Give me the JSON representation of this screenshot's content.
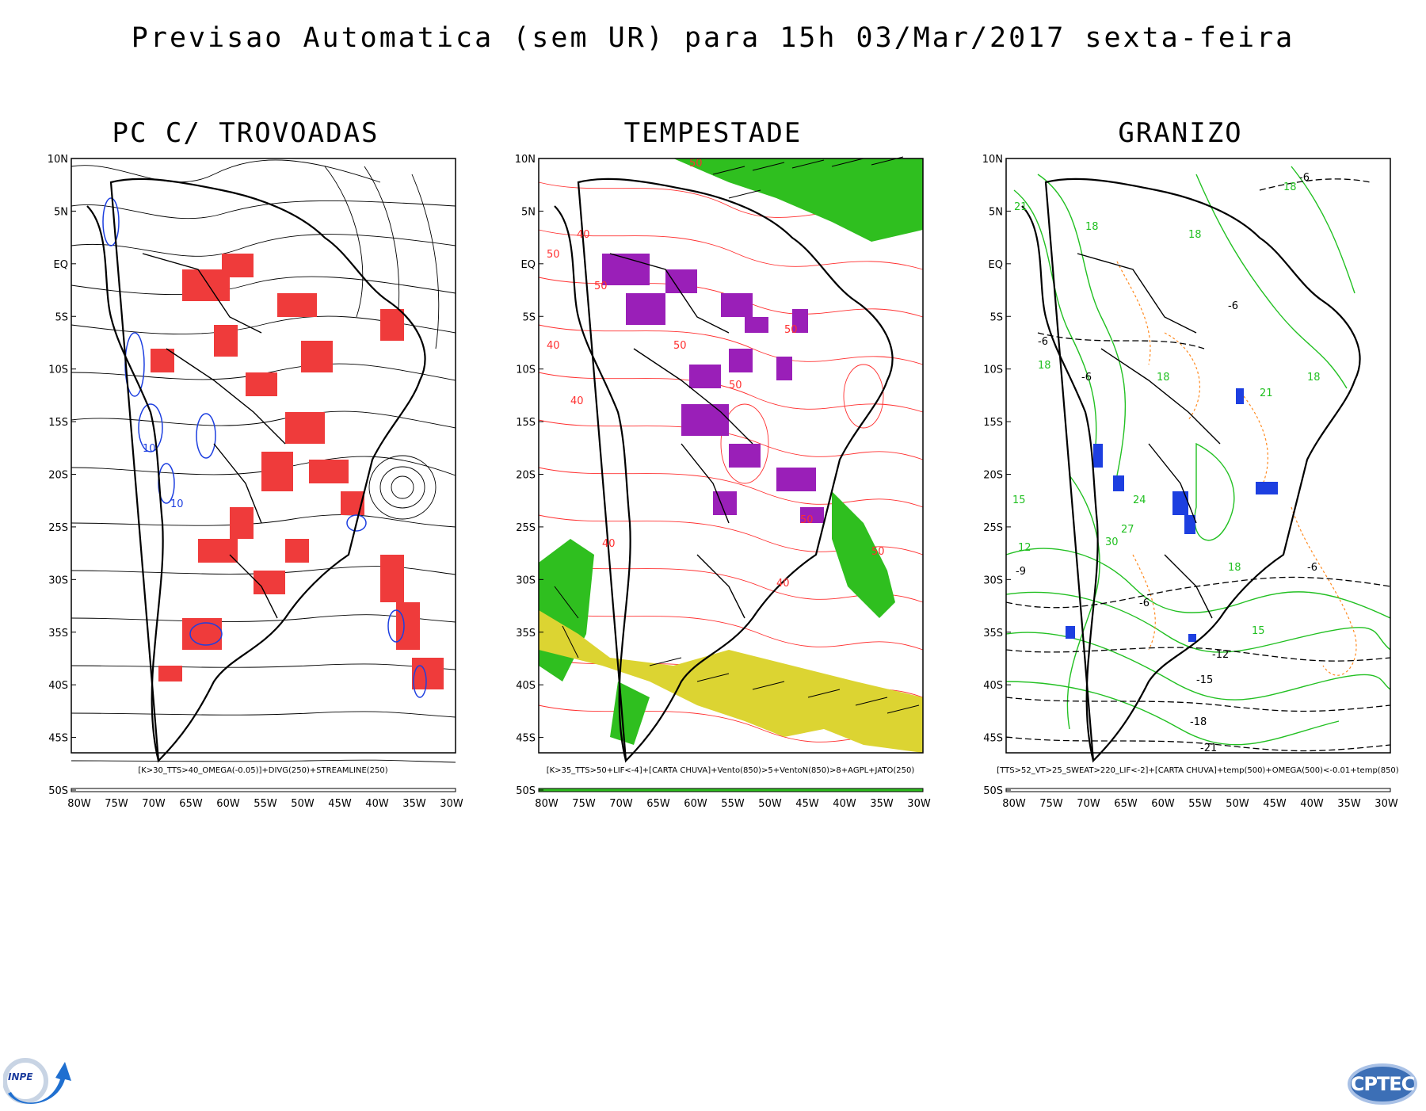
{
  "title": "Previsao Automatica (sem UR) para 15h 03/Mar/2017 sexta-feira",
  "panels": [
    {
      "id": "trovoadas",
      "title": "PC C/ TROVOADAS",
      "caption": "[K>30_TTS>40_OMEGA(-0.05)]+DIVG(250)+STREAMLINE(250)",
      "contour_labels": [
        "10",
        "10"
      ]
    },
    {
      "id": "tempestade",
      "title": "TEMPESTADE",
      "caption": "[K>35_TTS>50+LIF<-4]+[CARTA CHUVA]+Vento(850)>5+VentoN(850)>8+AGPL+JATO(250)",
      "contour_labels": [
        "50",
        "40",
        "50",
        "50",
        "40",
        "50",
        "50",
        "40",
        "40",
        "50",
        "50",
        "40",
        "50"
      ]
    },
    {
      "id": "granizo",
      "title": "GRANIZO",
      "caption": "[TTS>52_VT>25_SWEAT>220_LIF<-2]+[CARTA CHUVA]+temp(500)+OMEGA(500)<-0.01+temp(850)",
      "contour_labels": [
        "-6",
        "18",
        "21",
        "18",
        "-6",
        "18",
        "-6",
        "18",
        "18",
        "-6",
        "18",
        "21",
        "18",
        "15",
        "12",
        "-9",
        "-6",
        "-6",
        "15",
        "-12",
        "-15",
        "-18",
        "-21",
        "24",
        "27",
        "30"
      ]
    }
  ],
  "axes": {
    "lat_labels": [
      "10N",
      "5N",
      "EQ",
      "5S",
      "10S",
      "15S",
      "20S",
      "25S",
      "30S",
      "35S",
      "40S",
      "45S",
      "50S"
    ],
    "lon_labels": [
      "80W",
      "75W",
      "70W",
      "65W",
      "60W",
      "55W",
      "50W",
      "45W",
      "40W",
      "35W",
      "30W"
    ]
  },
  "colors": {
    "thunderstorm_mask": "#ef3b3b",
    "divergence_contours": "#1d3fe0",
    "streamlines": "#000000",
    "storm_mask": "#9a1fb8",
    "jet_fill": "#2fbf1f",
    "low_level_jet_fill": "#dcd432",
    "wind_contours": "#ff3030",
    "temp850_contours": "#22c022",
    "temp500_contours": "#000000",
    "omega_contours": "#ff8a20",
    "hail_mask": "#1d3fe0"
  },
  "logos": {
    "left": "INPE",
    "right": "CPTEC"
  }
}
